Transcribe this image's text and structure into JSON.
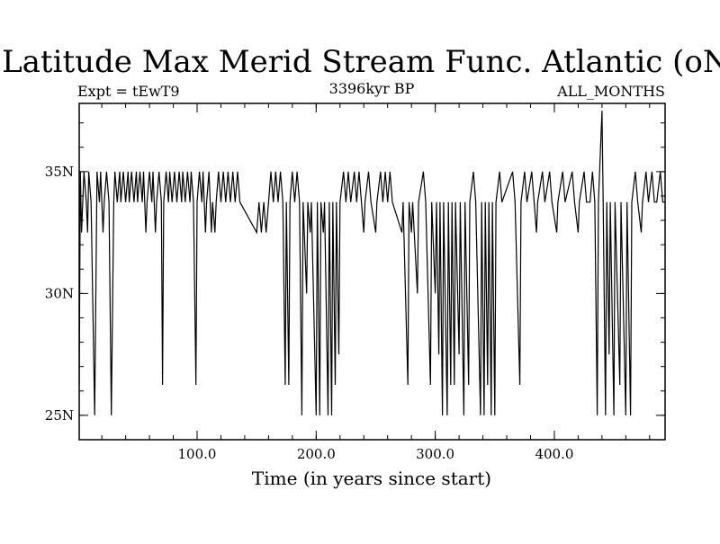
{
  "chart_data": {
    "type": "line",
    "title": "Latitude Max Merid Stream Func. Atlantic (oN)",
    "subtitle_left": "Expt = tEwT9",
    "subtitle_center": "3396kyr BP",
    "subtitle_right": "ALL_MONTHS",
    "xlabel": "Time (in years since start)",
    "ylabel": "",
    "xlim": [
      1,
      493
    ],
    "ylim": [
      24,
      37.8
    ],
    "x_ticks": [
      {
        "value": 100,
        "label": "100.0"
      },
      {
        "value": 200,
        "label": "200.0"
      },
      {
        "value": 300,
        "label": "300.0"
      },
      {
        "value": 400,
        "label": "400.0"
      }
    ],
    "y_ticks": [
      {
        "value": 25,
        "label": "25N"
      },
      {
        "value": 30,
        "label": "30N"
      },
      {
        "value": 35,
        "label": "35N"
      }
    ],
    "x_minor_step": 20,
    "y_minor_step": 1,
    "baseline": 33.75,
    "levels": [
      25,
      26.25,
      27.5,
      30,
      32.5,
      33.75,
      35,
      37.5
    ],
    "series": [
      {
        "name": "latitude",
        "events": [
          [
            1,
            26.25
          ],
          [
            2,
            35
          ],
          [
            3,
            32.5
          ],
          [
            5,
            35
          ],
          [
            7,
            33.75
          ],
          [
            8,
            32.5
          ],
          [
            9,
            35
          ],
          [
            11,
            33.75
          ],
          [
            14,
            25
          ],
          [
            16,
            35
          ],
          [
            18,
            33.75
          ],
          [
            19,
            35
          ],
          [
            21,
            32.5
          ],
          [
            22,
            33.75
          ],
          [
            24,
            35
          ],
          [
            26,
            33.75
          ],
          [
            28,
            25
          ],
          [
            30,
            33.75
          ],
          [
            31,
            35
          ],
          [
            33,
            33.75
          ],
          [
            35,
            35
          ],
          [
            36,
            33.75
          ],
          [
            38,
            35
          ],
          [
            40,
            33.75
          ],
          [
            42,
            35
          ],
          [
            43,
            33.75
          ],
          [
            45,
            35
          ],
          [
            47,
            33.75
          ],
          [
            49,
            35
          ],
          [
            50,
            33.75
          ],
          [
            52,
            35
          ],
          [
            54,
            33.75
          ],
          [
            55,
            35
          ],
          [
            57,
            32.5
          ],
          [
            58,
            33.75
          ],
          [
            60,
            35
          ],
          [
            62,
            33.75
          ],
          [
            63,
            35
          ],
          [
            65,
            32.5
          ],
          [
            66,
            33.75
          ],
          [
            68,
            35
          ],
          [
            70,
            33.75
          ],
          [
            71,
            26.25
          ],
          [
            72,
            33.75
          ],
          [
            74,
            35
          ],
          [
            76,
            33.75
          ],
          [
            77,
            35
          ],
          [
            79,
            33.75
          ],
          [
            81,
            35
          ],
          [
            83,
            33.75
          ],
          [
            85,
            35
          ],
          [
            87,
            33.75
          ],
          [
            88,
            35
          ],
          [
            90,
            33.75
          ],
          [
            92,
            35
          ],
          [
            94,
            33.75
          ],
          [
            95,
            35
          ],
          [
            97,
            33.75
          ],
          [
            99,
            26.25
          ],
          [
            100,
            33.75
          ],
          [
            102,
            35
          ],
          [
            104,
            33.75
          ],
          [
            105,
            35
          ],
          [
            107,
            32.5
          ],
          [
            108,
            33.75
          ],
          [
            110,
            35
          ],
          [
            112,
            32.5
          ],
          [
            113,
            33.75
          ],
          [
            115,
            32.5
          ],
          [
            116,
            33.75
          ],
          [
            118,
            35
          ],
          [
            120,
            33.75
          ],
          [
            122,
            35
          ],
          [
            124,
            33.75
          ],
          [
            126,
            35
          ],
          [
            128,
            33.75
          ],
          [
            130,
            35
          ],
          [
            132,
            33.75
          ],
          [
            134,
            35
          ],
          [
            136,
            33.75
          ],
          [
            150,
            32.5
          ],
          [
            152,
            33.75
          ],
          [
            154,
            32.5
          ],
          [
            156,
            33.75
          ],
          [
            158,
            32.5
          ],
          [
            160,
            33.75
          ],
          [
            162,
            35
          ],
          [
            164,
            33.75
          ],
          [
            166,
            35
          ],
          [
            168,
            33.75
          ],
          [
            170,
            35
          ],
          [
            172,
            33.75
          ],
          [
            174,
            26.25
          ],
          [
            175,
            33.75
          ],
          [
            177,
            26.25
          ],
          [
            178,
            33.75
          ],
          [
            180,
            35
          ],
          [
            182,
            33.75
          ],
          [
            184,
            35
          ],
          [
            186,
            33.75
          ],
          [
            188,
            25
          ],
          [
            189,
            33.75
          ],
          [
            192,
            30
          ],
          [
            193,
            33.75
          ],
          [
            195,
            32.5
          ],
          [
            196,
            33.75
          ],
          [
            200,
            25
          ],
          [
            201,
            33.75
          ],
          [
            203,
            25
          ],
          [
            204,
            33.75
          ],
          [
            206,
            32.5
          ],
          [
            207,
            33.75
          ],
          [
            210,
            25
          ],
          [
            211,
            33.75
          ],
          [
            213,
            25
          ],
          [
            214,
            33.75
          ],
          [
            216,
            26.25
          ],
          [
            217,
            33.75
          ],
          [
            219,
            27.5
          ],
          [
            220,
            33.75
          ],
          [
            223,
            35
          ],
          [
            225,
            33.75
          ],
          [
            227,
            35
          ],
          [
            229,
            33.75
          ],
          [
            232,
            35
          ],
          [
            234,
            33.75
          ],
          [
            236,
            35
          ],
          [
            238,
            33.75
          ],
          [
            240,
            32.5
          ],
          [
            241,
            33.75
          ],
          [
            244,
            35
          ],
          [
            246,
            33.75
          ],
          [
            250,
            32.5
          ],
          [
            251,
            33.75
          ],
          [
            254,
            35
          ],
          [
            256,
            33.75
          ],
          [
            258,
            35
          ],
          [
            260,
            33.75
          ],
          [
            262,
            35
          ],
          [
            264,
            33.75
          ],
          [
            272,
            32.5
          ],
          [
            273,
            33.75
          ],
          [
            277,
            26.25
          ],
          [
            278,
            33.75
          ],
          [
            280,
            32.5
          ],
          [
            281,
            33.75
          ],
          [
            285,
            30
          ],
          [
            286,
            33.75
          ],
          [
            290,
            35
          ],
          [
            292,
            33.75
          ],
          [
            296,
            26.25
          ],
          [
            297,
            33.75
          ],
          [
            300,
            30
          ],
          [
            301,
            33.75
          ],
          [
            303,
            27.5
          ],
          [
            304,
            33.75
          ],
          [
            306,
            25
          ],
          [
            307,
            33.75
          ],
          [
            310,
            25
          ],
          [
            311,
            33.75
          ],
          [
            313,
            26.25
          ],
          [
            314,
            33.75
          ],
          [
            316,
            26.25
          ],
          [
            317,
            33.75
          ],
          [
            320,
            27.5
          ],
          [
            321,
            33.75
          ],
          [
            324,
            25
          ],
          [
            325,
            33.75
          ],
          [
            328,
            26.25
          ],
          [
            329,
            33.75
          ],
          [
            332,
            35
          ],
          [
            334,
            33.75
          ],
          [
            338,
            25
          ],
          [
            339,
            33.75
          ],
          [
            341,
            25
          ],
          [
            342,
            33.75
          ],
          [
            344,
            26.25
          ],
          [
            345,
            33.75
          ],
          [
            347,
            25
          ],
          [
            348,
            33.75
          ],
          [
            350,
            25
          ],
          [
            351,
            33.75
          ],
          [
            354,
            35
          ],
          [
            356,
            33.75
          ],
          [
            365,
            35
          ],
          [
            367,
            33.75
          ],
          [
            371,
            26.25
          ],
          [
            372,
            33.75
          ],
          [
            375,
            35
          ],
          [
            377,
            33.75
          ],
          [
            381,
            35
          ],
          [
            383,
            33.75
          ],
          [
            385,
            32.5
          ],
          [
            386,
            33.75
          ],
          [
            390,
            35
          ],
          [
            392,
            33.75
          ],
          [
            396,
            35
          ],
          [
            398,
            33.75
          ],
          [
            402,
            32.5
          ],
          [
            403,
            33.75
          ],
          [
            407,
            35
          ],
          [
            409,
            33.75
          ],
          [
            415,
            35
          ],
          [
            417,
            33.75
          ],
          [
            420,
            32.5
          ],
          [
            421,
            33.75
          ],
          [
            425,
            35
          ],
          [
            427,
            33.75
          ],
          [
            430,
            33.75
          ],
          [
            432,
            35
          ],
          [
            434,
            33.75
          ],
          [
            436,
            25
          ],
          [
            437,
            33.75
          ],
          [
            440,
            37.5
          ],
          [
            441,
            33.75
          ],
          [
            443,
            25
          ],
          [
            444,
            33.75
          ],
          [
            446,
            27.5
          ],
          [
            447,
            33.75
          ],
          [
            450,
            25
          ],
          [
            451,
            33.75
          ],
          [
            455,
            26.25
          ],
          [
            456,
            33.75
          ],
          [
            460,
            25
          ],
          [
            461,
            33.75
          ],
          [
            464,
            25
          ],
          [
            465,
            33.75
          ],
          [
            468,
            35
          ],
          [
            470,
            33.75
          ],
          [
            473,
            32.5
          ],
          [
            474,
            33.75
          ],
          [
            477,
            35
          ],
          [
            479,
            33.75
          ],
          [
            482,
            35
          ],
          [
            484,
            33.75
          ],
          [
            486,
            33.75
          ],
          [
            489,
            35
          ],
          [
            491,
            33.75
          ],
          [
            493,
            33.75
          ]
        ]
      }
    ]
  }
}
